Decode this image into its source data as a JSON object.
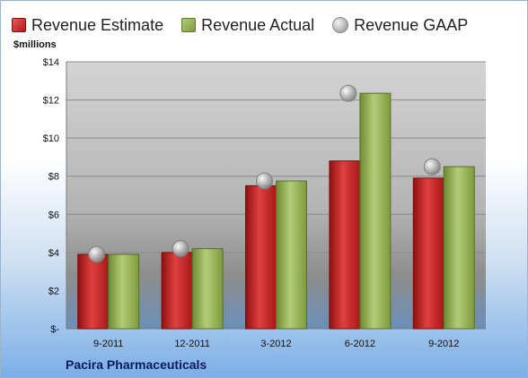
{
  "chart_data": {
    "type": "bar",
    "categories": [
      "9-2011",
      "12-2011",
      "3-2012",
      "6-2012",
      "9-2012"
    ],
    "series": [
      {
        "name": "Revenue Estimate",
        "values": [
          3.9,
          4.0,
          7.5,
          8.8,
          7.9
        ],
        "color": "#c01e1e"
      },
      {
        "name": "Revenue Actual",
        "values": [
          3.9,
          4.2,
          7.75,
          12.35,
          8.5
        ],
        "color": "#8faa4a"
      },
      {
        "name": "Revenue GAAP",
        "values": [
          3.9,
          4.2,
          7.75,
          12.35,
          8.5
        ],
        "color": "#b0b0b0",
        "marker": "circle"
      }
    ],
    "yticks": [
      "$-",
      "$2",
      "$4",
      "$6",
      "$8",
      "$10",
      "$12",
      "$14"
    ],
    "ylim": [
      0,
      14
    ],
    "ylabel": "$millions",
    "grid": true,
    "legend": "top"
  },
  "company": "Pacira Pharmaceuticals"
}
